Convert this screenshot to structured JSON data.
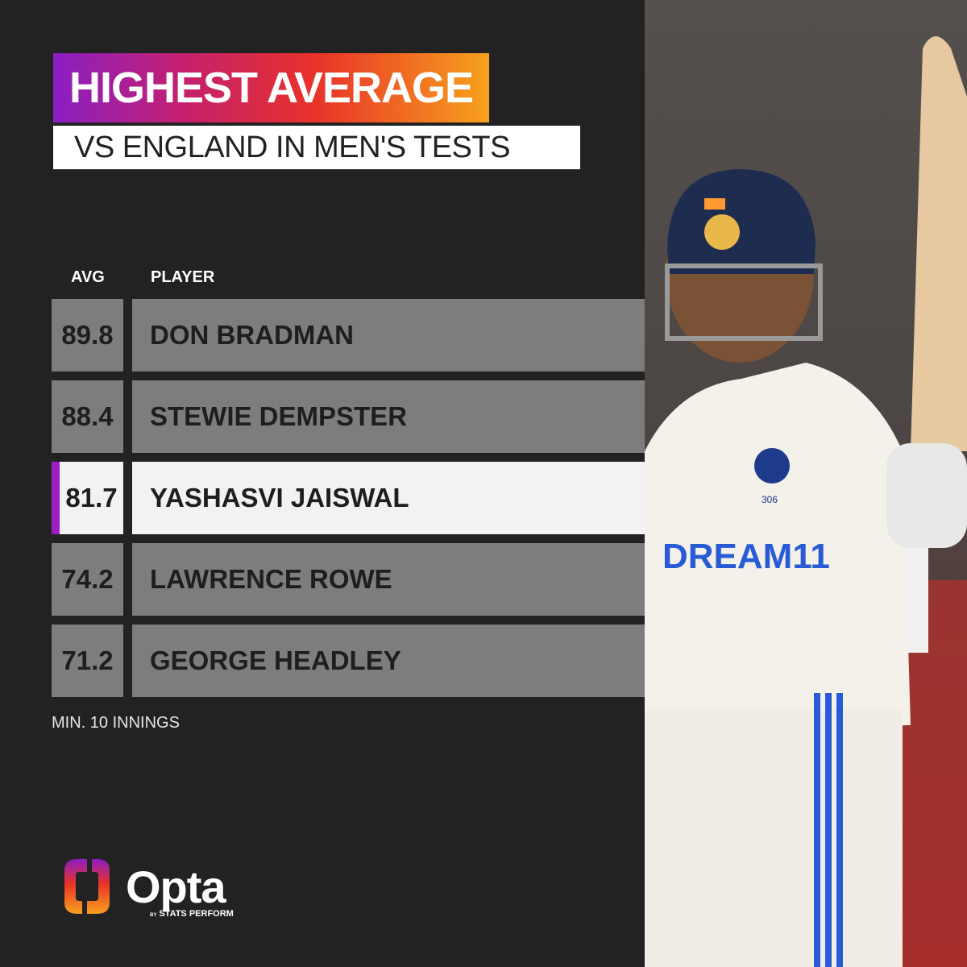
{
  "title": "HIGHEST AVERAGE",
  "subtitle": "VS ENGLAND IN MEN'S TESTS",
  "columns": {
    "avg": "AVG",
    "player": "PLAYER"
  },
  "footnote": "MIN. 10 INNINGS",
  "brand": {
    "name": "Opta",
    "by": "BY",
    "sub": "STATS PERFORM"
  },
  "photo": {
    "jersey_sponsor": "DREAM11",
    "jersey_number": "306"
  },
  "colors": {
    "highlight_accent": "#9b1fc4",
    "row_bg": "#7d7d7d",
    "highlight_bg": "#f2f2f2"
  },
  "chart_data": {
    "type": "table",
    "columns": [
      "AVG",
      "PLAYER"
    ],
    "rows": [
      {
        "avg": "89.8",
        "player": "DON BRADMAN",
        "highlight": false
      },
      {
        "avg": "88.4",
        "player": "STEWIE DEMPSTER",
        "highlight": false
      },
      {
        "avg": "81.7",
        "player": "YASHASVI JAISWAL",
        "highlight": true
      },
      {
        "avg": "74.2",
        "player": "LAWRENCE ROWE",
        "highlight": false
      },
      {
        "avg": "71.2",
        "player": "GEORGE HEADLEY",
        "highlight": false
      }
    ]
  }
}
